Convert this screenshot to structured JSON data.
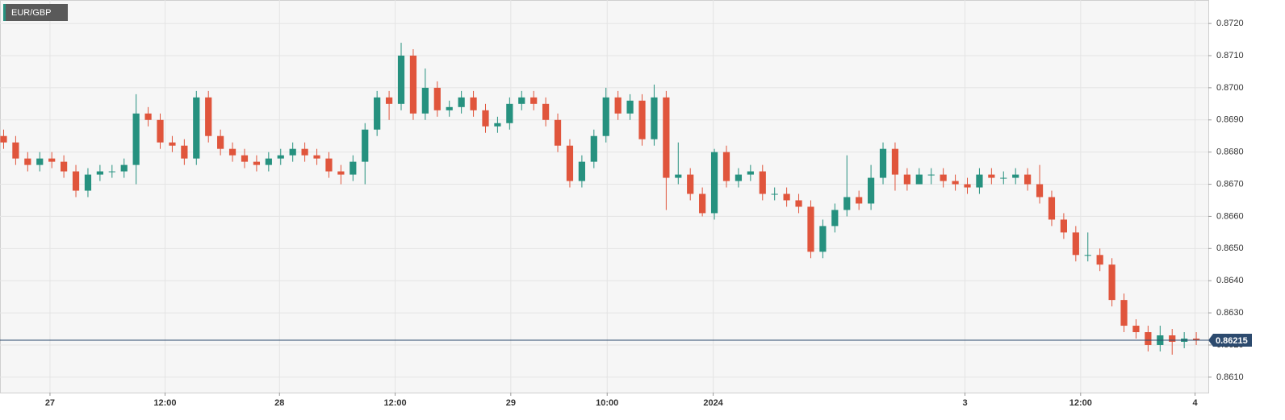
{
  "chart_data": {
    "type": "candlestick",
    "title": "EUR/GBP",
    "series": [
      {
        "name": "EUR/GBP",
        "up_color": "#26917f",
        "down_color": "#e0553c",
        "open": [
          0.8685,
          0.8683,
          0.8678,
          0.8676,
          0.8678,
          0.8677,
          0.8674,
          0.8668,
          0.8673,
          0.8674,
          0.8674,
          0.8676,
          0.8692,
          0.869,
          0.8683,
          0.8682,
          0.8678,
          0.8697,
          0.8685,
          0.8681,
          0.8679,
          0.8677,
          0.8676,
          0.8678,
          0.8679,
          0.8681,
          0.8679,
          0.8678,
          0.8674,
          0.8673,
          0.8677,
          0.8687,
          0.8697,
          0.8695,
          0.871,
          0.8692,
          0.87,
          0.8693,
          0.8694,
          0.8697,
          0.8693,
          0.8688,
          0.8689,
          0.8695,
          0.8697,
          0.8695,
          0.869,
          0.8682,
          0.8671,
          0.8677,
          0.8685,
          0.8697,
          0.8692,
          0.8696,
          0.8684,
          0.8697,
          0.8672,
          0.8673,
          0.8667,
          0.8661,
          0.868,
          0.8671,
          0.8673,
          0.8674,
          0.8667,
          0.8667,
          0.8665,
          0.8663,
          0.8649,
          0.8657,
          0.8662,
          0.8666,
          0.8664,
          0.8672,
          0.8681,
          0.8673,
          0.867,
          0.8673,
          0.8673,
          0.8671,
          0.867,
          0.8669,
          0.8673,
          0.8672,
          0.8672,
          0.8673,
          0.867,
          0.8666,
          0.8659,
          0.8655,
          0.8648,
          0.8648,
          0.8645,
          0.8634,
          0.8626,
          0.8624,
          0.862,
          0.8623,
          0.8621,
          0.8622
        ],
        "high": [
          0.8687,
          0.8685,
          0.868,
          0.868,
          0.868,
          0.8679,
          0.8676,
          0.8675,
          0.8676,
          0.8676,
          0.8678,
          0.8698,
          0.8694,
          0.8692,
          0.8685,
          0.8684,
          0.8699,
          0.8699,
          0.8687,
          0.8683,
          0.8681,
          0.8679,
          0.868,
          0.8681,
          0.8683,
          0.8683,
          0.8681,
          0.868,
          0.8676,
          0.8679,
          0.8689,
          0.8699,
          0.8699,
          0.8714,
          0.8712,
          0.8706,
          0.8702,
          0.8696,
          0.8699,
          0.8699,
          0.8695,
          0.8691,
          0.8697,
          0.8699,
          0.8699,
          0.8697,
          0.8692,
          0.8684,
          0.8679,
          0.8687,
          0.87,
          0.8699,
          0.8698,
          0.8698,
          0.8701,
          0.8699,
          0.8683,
          0.8675,
          0.8669,
          0.8681,
          0.8682,
          0.8675,
          0.8676,
          0.8676,
          0.8669,
          0.8669,
          0.8667,
          0.8665,
          0.8659,
          0.8664,
          0.8679,
          0.8668,
          0.8676,
          0.8683,
          0.8683,
          0.8675,
          0.8675,
          0.8675,
          0.8675,
          0.8673,
          0.8672,
          0.8675,
          0.8675,
          0.8674,
          0.8675,
          0.8675,
          0.8676,
          0.8668,
          0.8661,
          0.8657,
          0.8655,
          0.865,
          0.8647,
          0.8636,
          0.8628,
          0.8626,
          0.8626,
          0.8625,
          0.8624,
          0.8624
        ],
        "low": [
          0.8681,
          0.8676,
          0.8674,
          0.8674,
          0.8675,
          0.8672,
          0.8666,
          0.8666,
          0.8671,
          0.8672,
          0.8672,
          0.867,
          0.8688,
          0.8681,
          0.868,
          0.8676,
          0.8676,
          0.8683,
          0.8679,
          0.8677,
          0.8675,
          0.8674,
          0.8674,
          0.8676,
          0.8677,
          0.8677,
          0.8676,
          0.8672,
          0.867,
          0.8671,
          0.867,
          0.8685,
          0.869,
          0.8693,
          0.869,
          0.869,
          0.8691,
          0.8691,
          0.8692,
          0.8691,
          0.8686,
          0.8686,
          0.8687,
          0.8693,
          0.8693,
          0.8688,
          0.868,
          0.8669,
          0.8669,
          0.8675,
          0.8683,
          0.869,
          0.869,
          0.8682,
          0.8682,
          0.8662,
          0.867,
          0.8665,
          0.866,
          0.8659,
          0.8669,
          0.8669,
          0.8671,
          0.8665,
          0.8665,
          0.8663,
          0.8661,
          0.8647,
          0.8647,
          0.8655,
          0.866,
          0.8662,
          0.8662,
          0.867,
          0.8668,
          0.8668,
          0.867,
          0.867,
          0.8669,
          0.8668,
          0.8667,
          0.8667,
          0.867,
          0.867,
          0.867,
          0.8668,
          0.8664,
          0.8657,
          0.8653,
          0.8646,
          0.8646,
          0.8643,
          0.8632,
          0.8624,
          0.8622,
          0.8618,
          0.8618,
          0.8617,
          0.8619,
          0.862
        ],
        "close": [
          0.8683,
          0.8678,
          0.8676,
          0.8678,
          0.8677,
          0.8674,
          0.8668,
          0.8673,
          0.8674,
          0.8674,
          0.8676,
          0.8692,
          0.869,
          0.8683,
          0.8682,
          0.8678,
          0.8697,
          0.8685,
          0.8681,
          0.8679,
          0.8677,
          0.8676,
          0.8678,
          0.8679,
          0.8681,
          0.8679,
          0.8678,
          0.8674,
          0.8673,
          0.8677,
          0.8687,
          0.8697,
          0.8695,
          0.871,
          0.8692,
          0.87,
          0.8693,
          0.8694,
          0.8697,
          0.8693,
          0.8688,
          0.8689,
          0.8695,
          0.8697,
          0.8695,
          0.869,
          0.8682,
          0.8671,
          0.8677,
          0.8685,
          0.8697,
          0.8692,
          0.8696,
          0.8684,
          0.8697,
          0.8672,
          0.8673,
          0.8667,
          0.8661,
          0.868,
          0.8671,
          0.8673,
          0.8674,
          0.8667,
          0.8667,
          0.8665,
          0.8663,
          0.8649,
          0.8657,
          0.8662,
          0.8666,
          0.8664,
          0.8672,
          0.8681,
          0.8673,
          0.867,
          0.8673,
          0.8673,
          0.8671,
          0.867,
          0.8669,
          0.8673,
          0.8672,
          0.8672,
          0.8673,
          0.867,
          0.8666,
          0.8659,
          0.8655,
          0.8648,
          0.8648,
          0.8645,
          0.8634,
          0.8626,
          0.8624,
          0.862,
          0.8623,
          0.8621,
          0.8622,
          0.86215
        ]
      }
    ],
    "last_price": 0.86215,
    "last_price_color": "#2c4a6e",
    "xlim": [
      -0.3,
      100
    ],
    "xticks": [
      {
        "value": 3.85,
        "label": "27"
      },
      {
        "value": 13.4,
        "label": "12:00"
      },
      {
        "value": 22.9,
        "label": "28"
      },
      {
        "value": 32.5,
        "label": "12:00"
      },
      {
        "value": 42.1,
        "label": "29"
      },
      {
        "value": 50.1,
        "label": "10:00"
      },
      {
        "value": 58.9,
        "label": "2024"
      },
      {
        "value": 79.8,
        "label": "3"
      },
      {
        "value": 89.4,
        "label": "12:00"
      },
      {
        "value": 98.9,
        "label": "4"
      }
    ],
    "ylim": [
      0.86052,
      0.87273
    ],
    "yticks": [
      {
        "value": 0.861,
        "label": "0.8610"
      },
      {
        "value": 0.862,
        "label": "0.8620"
      },
      {
        "value": 0.863,
        "label": "0.8630"
      },
      {
        "value": 0.864,
        "label": "0.8640"
      },
      {
        "value": 0.865,
        "label": "0.8650"
      },
      {
        "value": 0.866,
        "label": "0.8660"
      },
      {
        "value": 0.867,
        "label": "0.8670"
      },
      {
        "value": 0.868,
        "label": "0.8680"
      },
      {
        "value": 0.869,
        "label": "0.8690"
      },
      {
        "value": 0.87,
        "label": "0.8700"
      },
      {
        "value": 0.871,
        "label": "0.8710"
      },
      {
        "value": 0.872,
        "label": "0.8720"
      }
    ],
    "grid": true
  }
}
